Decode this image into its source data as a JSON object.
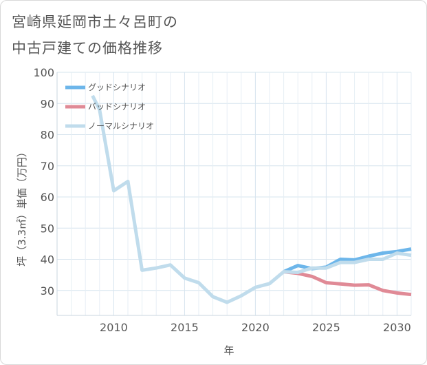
{
  "title": {
    "line1": "宮崎県延岡市土々呂町の",
    "line2": "中古戸建ての価格推移"
  },
  "chart_data": {
    "type": "line",
    "xlabel": "年",
    "ylabel": "坪（3.3㎡）単価（万円）",
    "xlim": [
      2006,
      2031
    ],
    "ylim": [
      22,
      100
    ],
    "xticks": [
      2010,
      2015,
      2020,
      2025,
      2030
    ],
    "yticks": [
      30,
      40,
      50,
      60,
      70,
      80,
      90,
      100
    ],
    "grid": true,
    "legend_position": "top-left",
    "series": [
      {
        "name": "グッドシナリオ",
        "color": "#6db6ea",
        "x": [
          2022,
          2023,
          2024,
          2025,
          2026,
          2027,
          2028,
          2029,
          2030,
          2031
        ],
        "values": [
          36,
          38,
          37,
          37.5,
          40,
          39.8,
          41,
          42,
          42.5,
          43.3
        ]
      },
      {
        "name": "バッドシナリオ",
        "color": "#e08a96",
        "x": [
          2022,
          2023,
          2024,
          2025,
          2026,
          2027,
          2028,
          2029,
          2030,
          2031
        ],
        "values": [
          36,
          35.5,
          34.5,
          32.5,
          32.1,
          31.7,
          31.8,
          30,
          29.2,
          28.7
        ]
      },
      {
        "name": "ノーマルシナリオ",
        "color": "#c0dcec",
        "x": [
          2008.5,
          2009,
          2010,
          2011,
          2012,
          2013,
          2014,
          2015,
          2016,
          2017,
          2018,
          2019,
          2020,
          2021,
          2022,
          2023,
          2024,
          2025,
          2026,
          2027,
          2028,
          2029,
          2030,
          2031
        ],
        "values": [
          92.5,
          88,
          62,
          65,
          36.5,
          37.2,
          38.2,
          34,
          32.5,
          28,
          26.2,
          28.3,
          31,
          32.2,
          36,
          35.8,
          37.2,
          37.2,
          39,
          39,
          40,
          40,
          42,
          41.3
        ]
      }
    ]
  }
}
